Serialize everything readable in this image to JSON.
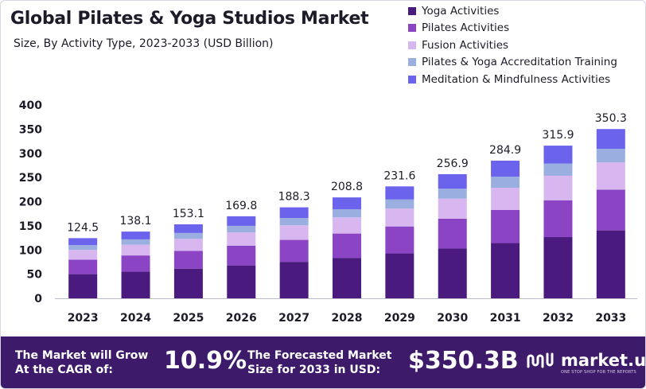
{
  "header": {
    "title": "Global Pilates & Yoga Studios Market",
    "subtitle": "Size, By Activity Type, 2023-2033 (USD Billion)"
  },
  "chart_data": {
    "type": "bar",
    "stacked": true,
    "title": "Global Pilates & Yoga Studios Market",
    "subtitle": "Size, By Activity Type, 2023-2033 (USD Billion)",
    "xlabel": "",
    "ylabel": "",
    "ylim": [
      0,
      400
    ],
    "yticks": [
      0,
      50,
      100,
      150,
      200,
      250,
      300,
      350,
      400
    ],
    "grid": false,
    "legend_position": "top-right",
    "categories": [
      "2023",
      "2024",
      "2025",
      "2026",
      "2027",
      "2028",
      "2029",
      "2030",
      "2031",
      "2032",
      "2033"
    ],
    "totals": [
      124.5,
      138.1,
      153.1,
      169.8,
      188.3,
      208.8,
      231.6,
      256.9,
      284.9,
      315.9,
      350.3
    ],
    "total_labels": [
      "124.5",
      "138.1",
      "153.1",
      "169.8",
      "188.3",
      "208.8",
      "231.6",
      "256.9",
      "284.9",
      "315.9",
      "350.3"
    ],
    "series": [
      {
        "name": "Yoga Activities",
        "color": "#4a1a7e",
        "values": [
          50.0,
          55.4,
          61.4,
          68.1,
          75.5,
          83.7,
          92.9,
          103.0,
          114.3,
          126.7,
          140.5
        ]
      },
      {
        "name": "Pilates Activities",
        "color": "#8a44c4",
        "values": [
          30.0,
          33.3,
          36.9,
          40.9,
          45.4,
          50.3,
          55.8,
          61.9,
          68.7,
          76.2,
          84.4
        ]
      },
      {
        "name": "Fusion Activities",
        "color": "#d8b7f0",
        "values": [
          20.0,
          22.2,
          24.6,
          27.3,
          30.2,
          33.5,
          37.2,
          41.3,
          45.8,
          50.7,
          56.3
        ]
      },
      {
        "name": "Pilates & Yoga Accreditation Training",
        "color": "#9aaee0",
        "values": [
          10.0,
          11.1,
          12.3,
          13.6,
          15.1,
          16.8,
          18.6,
          20.6,
          22.9,
          25.4,
          28.1
        ]
      },
      {
        "name": "Meditation & Mindfulness Activities",
        "color": "#6b63ec",
        "values": [
          14.5,
          16.1,
          17.9,
          19.9,
          22.1,
          24.5,
          27.1,
          30.1,
          33.2,
          36.9,
          41.0
        ]
      }
    ]
  },
  "footer": {
    "cagr_label_line1": "The Market will Grow",
    "cagr_label_line2": "At the CAGR of:",
    "cagr_value": "10.9%",
    "forecast_label_line1": "The Forecasted Market",
    "forecast_label_line2": "Size for 2033 in USD:",
    "forecast_value": "$350.3B",
    "brand_name": "market.us",
    "brand_tagline": "ONE STOP SHOP FOR THE REPORTS",
    "brand_icon": "market-us-logo-icon"
  }
}
